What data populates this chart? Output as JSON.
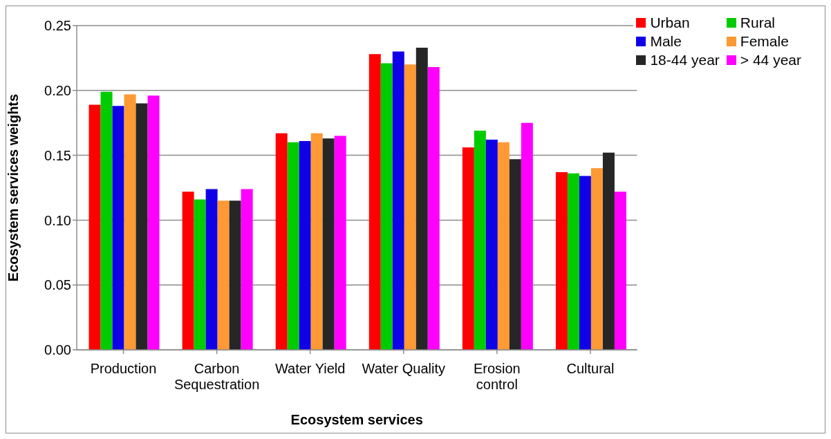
{
  "chart_data": {
    "type": "bar",
    "xlabel": "Ecosystem services",
    "ylabel": "Ecosystem services weights",
    "categories": [
      "Production",
      "Carbon Sequestration",
      "Water Yield",
      "Water Quality",
      "Erosion control",
      "Cultural"
    ],
    "series": [
      {
        "name": "Urban",
        "color": "#ff0000",
        "values": [
          0.189,
          0.122,
          0.167,
          0.228,
          0.156,
          0.137
        ]
      },
      {
        "name": "Rural",
        "color": "#00cc00",
        "values": [
          0.199,
          0.116,
          0.16,
          0.221,
          0.169,
          0.136
        ]
      },
      {
        "name": "Male",
        "color": "#1000e8",
        "values": [
          0.188,
          0.124,
          0.161,
          0.23,
          0.162,
          0.134
        ]
      },
      {
        "name": "Female",
        "color": "#ff9933",
        "values": [
          0.197,
          0.115,
          0.167,
          0.22,
          0.16,
          0.14
        ]
      },
      {
        "name": "18-44 year",
        "color": "#262626",
        "values": [
          0.19,
          0.115,
          0.163,
          0.233,
          0.147,
          0.152
        ]
      },
      {
        "name": "> 44 year",
        "color": "#ff00ff",
        "values": [
          0.196,
          0.124,
          0.165,
          0.218,
          0.175,
          0.122
        ]
      }
    ],
    "ylim": [
      0,
      0.25
    ],
    "yticks": [
      {
        "value": 0,
        "label": "0.00"
      },
      {
        "value": 0.05,
        "label": "0.05"
      },
      {
        "value": 0.1,
        "label": "0.10"
      },
      {
        "value": 0.15,
        "label": "0.15"
      },
      {
        "value": 0.2,
        "label": "0.20"
      },
      {
        "value": 0.25,
        "label": "0.25"
      }
    ],
    "grid": "y",
    "legend": "top right"
  }
}
